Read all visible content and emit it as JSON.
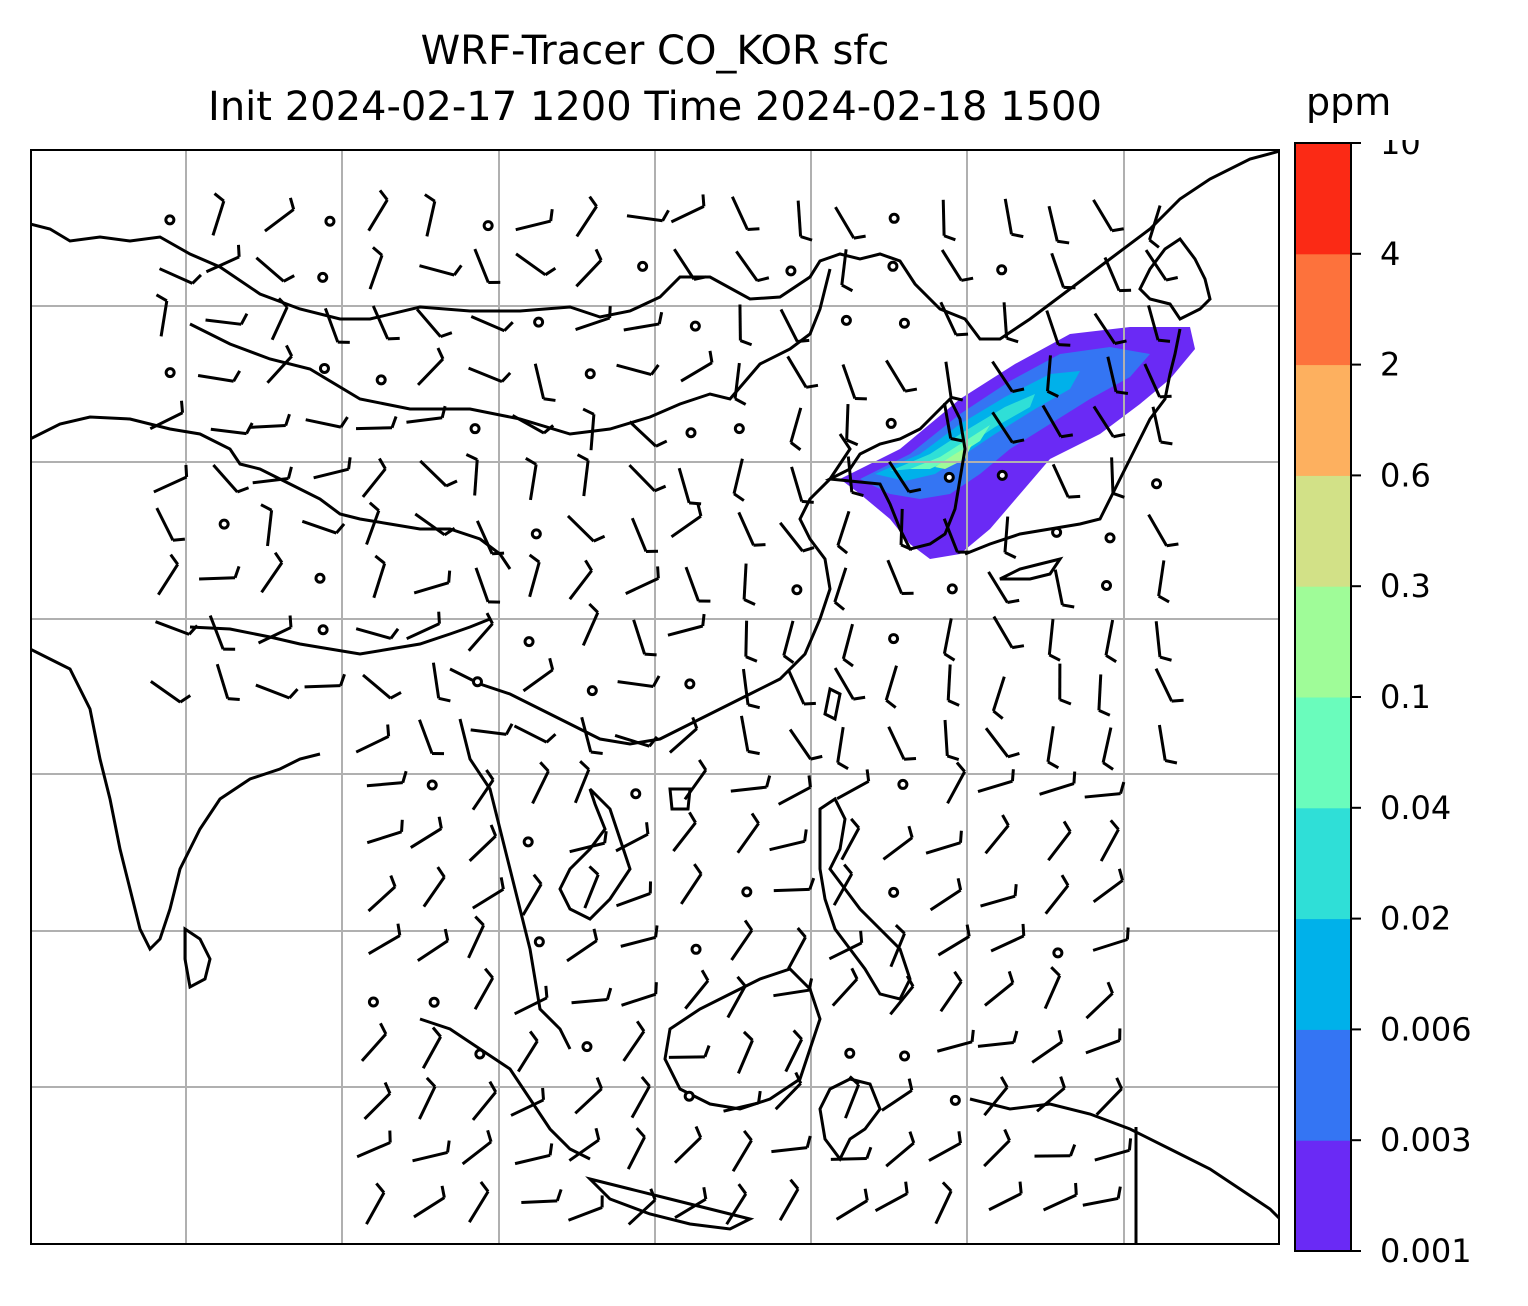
{
  "title": {
    "line1": "WRF-Tracer CO_KOR sfc",
    "line2": "Init 2024-02-17 1200 Time 2024-02-18 1500"
  },
  "colorbar": {
    "unit": "ppm",
    "levels": [
      "0.001",
      "0.003",
      "0.006",
      "0.02",
      "0.04",
      "0.1",
      "0.3",
      "0.6",
      "2",
      "4",
      "10"
    ],
    "colors": [
      "#6a2af5",
      "#3475f3",
      "#00b1ea",
      "#2fdfd7",
      "#6afcbc",
      "#9ffc98",
      "#d2e187",
      "#fdb05f",
      "#fd723c",
      "#fb2a15"
    ]
  },
  "map": {
    "gridlines": true,
    "gridline_color": "#b0b0b0",
    "coastline_color": "#000000"
  },
  "chart_data": {
    "type": "heatmap",
    "title": "WRF-Tracer CO_KOR sfc",
    "subtitle": "Init 2024-02-17 1200 Time 2024-02-18 1500",
    "colorbar_label": "ppm",
    "colorbar_levels": [
      0.001,
      0.003,
      0.006,
      0.02,
      0.04,
      0.1,
      0.3,
      0.6,
      2,
      4,
      10
    ],
    "overlays": [
      "wind barbs",
      "coastlines",
      "gridlines"
    ]
  }
}
